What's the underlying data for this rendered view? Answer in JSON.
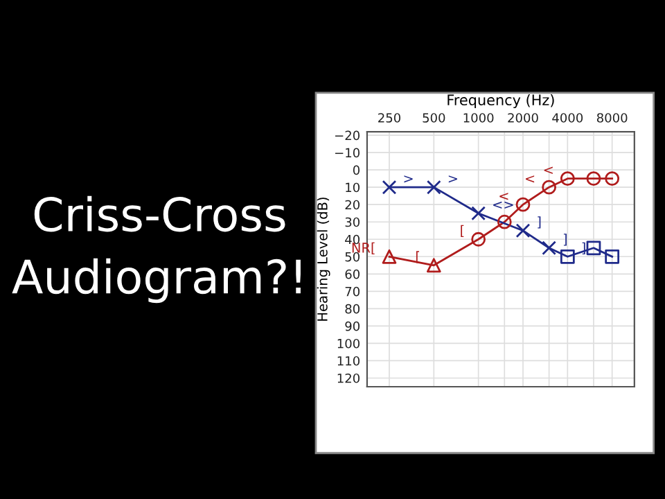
{
  "chart_data": {
    "type": "line",
    "title": "Criss-Cross\nAudiogram?!",
    "xlabel": "Frequency (Hz)",
    "ylabel": "Hearing Level (dB)",
    "log": "x",
    "xlim": [
      177,
      11314
    ],
    "xticks": [
      250,
      500,
      1000,
      2000,
      4000,
      8000,
      {
        "value": 1500,
        "label": null
      },
      {
        "value": 3000,
        "label": null
      },
      {
        "value": 6000,
        "label": null
      }
    ],
    "ylim": [
      125,
      -22
    ],
    "yticks": [
      -20,
      -10,
      0,
      10,
      20,
      30,
      40,
      50,
      60,
      70,
      80,
      90,
      100,
      110,
      120
    ],
    "grid": true,
    "series": [
      {
        "color": "#b01c1c",
        "marker": "none",
        "x": [
          250,
          500,
          1000,
          1500,
          2000,
          3000,
          4000,
          6000,
          8000
        ],
        "values": [
          50,
          55,
          40,
          30,
          20,
          10,
          5,
          5,
          5
        ]
      },
      {
        "type": "scatter",
        "color": "#b01c1c",
        "marker": "triangle",
        "x": [
          250,
          500
        ],
        "values": [
          50,
          55
        ]
      },
      {
        "type": "scatter",
        "color": "#b01c1c",
        "marker": "circle",
        "x": [
          1000,
          1500,
          2000,
          3000,
          4000,
          6000,
          8000
        ],
        "values": [
          40,
          30,
          20,
          10,
          5,
          5,
          5
        ]
      },
      {
        "color": "#1f2a8a",
        "marker": "none",
        "x": [
          250,
          500,
          1000,
          2000,
          3000,
          4000,
          6000,
          8000
        ],
        "values": [
          10,
          10,
          25,
          35,
          45,
          50,
          45,
          50
        ]
      },
      {
        "type": "scatter",
        "color": "#1f2a8a",
        "marker": "cross",
        "x": [
          250,
          500,
          1000,
          2000,
          3000
        ],
        "values": [
          10,
          10,
          25,
          35,
          45
        ]
      },
      {
        "type": "scatter",
        "color": "#1f2a8a",
        "marker": "square",
        "x": [
          4000,
          6000,
          8000
        ],
        "values": [
          50,
          45,
          50
        ]
      }
    ],
    "annotations": [
      {
        "text": ">",
        "x": 250,
        "y": 10
      },
      {
        "text": ">",
        "x": 500,
        "y": 10
      },
      {
        "text": "<>",
        "x": 1000,
        "y": 25
      },
      {
        "text": "]",
        "x": 2000,
        "y": 35
      },
      {
        "text": "]",
        "x": 3000,
        "y": 45
      },
      {
        "text": "]",
        "x": 4000,
        "y": 50
      },
      {
        "text": "<",
        "x": 2000,
        "y": 20
      },
      {
        "text": "<",
        "x": 3000,
        "y": 10
      },
      {
        "text": "<",
        "x": 4000,
        "y": 5
      },
      {
        "text": "[",
        "x": 1000,
        "y": 40
      },
      {
        "text": "[",
        "x": 500,
        "y": 55
      },
      {
        "text": "NR[",
        "x": 250,
        "y": 50
      }
    ]
  }
}
